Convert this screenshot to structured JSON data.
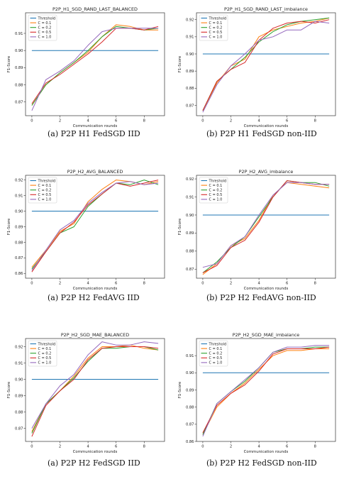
{
  "colors": {
    "Threshold": "#1f77b4",
    "C = 0.1": "#ff7f0e",
    "C = 0.2": "#2ca02c",
    "C = 0.5": "#d62728",
    "C = 1.0": "#9467bd"
  },
  "chart_data": [
    {
      "type": "line",
      "title": "P2P_H1_SGD_RAND_LAST_BALANCED",
      "xlabel": "Communication rounds",
      "ylabel": "F1-Score",
      "xlim": [
        -0.45,
        9.45
      ],
      "ylim": [
        0.862,
        0.922
      ],
      "xticks": [
        0,
        2,
        4,
        6,
        8
      ],
      "yticks": [
        0.87,
        0.88,
        0.89,
        0.9,
        0.91
      ],
      "ytick_labels": [
        "0.87",
        "0.88",
        "0.89",
        "0.90",
        "0.91"
      ],
      "legend_position": "top-left",
      "grid": false,
      "x": [
        0,
        1,
        2,
        3,
        4,
        5,
        6,
        7,
        8,
        9
      ],
      "series": [
        {
          "name": "Threshold",
          "values": [
            0.9,
            0.9,
            0.9,
            0.9,
            0.9,
            0.9,
            0.9,
            0.9,
            0.9,
            0.9
          ]
        },
        {
          "name": "C = 0.1",
          "values": [
            0.868,
            0.88,
            0.887,
            0.893,
            0.899,
            0.908,
            0.915,
            0.914,
            0.912,
            0.912
          ]
        },
        {
          "name": "C = 0.2",
          "values": [
            0.868,
            0.88,
            0.887,
            0.893,
            0.9,
            0.908,
            0.914,
            0.913,
            0.912,
            0.913
          ]
        },
        {
          "name": "C = 0.5",
          "values": [
            0.869,
            0.881,
            0.886,
            0.892,
            0.898,
            0.905,
            0.913,
            0.913,
            0.912,
            0.914
          ]
        },
        {
          "name": "C = 1.0",
          "values": [
            0.865,
            0.883,
            0.888,
            0.894,
            0.903,
            0.911,
            0.913,
            0.913,
            0.913,
            0.913
          ]
        }
      ]
    },
    {
      "type": "line",
      "title": "P2P_H1_SGD_RAND_LAST_imbalance",
      "xlabel": "Communication rounds",
      "ylabel": "F1-Score",
      "xlim": [
        -0.45,
        9.45
      ],
      "ylim": [
        0.864,
        0.924
      ],
      "xticks": [
        0,
        2,
        4,
        6,
        8
      ],
      "yticks": [
        0.87,
        0.88,
        0.89,
        0.9,
        0.91,
        0.92
      ],
      "ytick_labels": [
        "0.87",
        "0.88",
        "0.89",
        "0.90",
        "0.91",
        "0.92"
      ],
      "legend_position": "top-left",
      "grid": false,
      "x": [
        0,
        1,
        2,
        3,
        4,
        5,
        6,
        7,
        8,
        9
      ],
      "series": [
        {
          "name": "Threshold",
          "values": [
            0.9,
            0.9,
            0.9,
            0.9,
            0.9,
            0.9,
            0.9,
            0.9,
            0.9,
            0.9
          ]
        },
        {
          "name": "C = 0.1",
          "values": [
            0.867,
            0.883,
            0.893,
            0.897,
            0.91,
            0.914,
            0.916,
            0.918,
            0.919,
            0.921
          ]
        },
        {
          "name": "C = 0.2",
          "values": [
            0.867,
            0.884,
            0.891,
            0.898,
            0.907,
            0.913,
            0.917,
            0.919,
            0.92,
            0.921
          ]
        },
        {
          "name": "C = 0.5",
          "values": [
            0.867,
            0.884,
            0.891,
            0.895,
            0.908,
            0.915,
            0.918,
            0.919,
            0.918,
            0.92
          ]
        },
        {
          "name": "C = 1.0",
          "values": [
            0.866,
            0.882,
            0.893,
            0.9,
            0.908,
            0.91,
            0.914,
            0.914,
            0.919,
            0.918
          ]
        }
      ]
    },
    {
      "type": "line",
      "title": "P2P_H2_AVG_BALANCED",
      "xlabel": "Communication rounds",
      "ylabel": "F1-Score",
      "xlim": [
        -0.45,
        9.45
      ],
      "ylim": [
        0.857,
        0.923
      ],
      "xticks": [
        0,
        2,
        4,
        6,
        8
      ],
      "yticks": [
        0.86,
        0.87,
        0.88,
        0.89,
        0.9,
        0.91,
        0.92
      ],
      "ytick_labels": [
        "0.86",
        "0.87",
        "0.88",
        "0.89",
        "0.90",
        "0.91",
        "0.92"
      ],
      "legend_position": "top-left",
      "grid": false,
      "x": [
        0,
        1,
        2,
        3,
        4,
        5,
        6,
        7,
        8,
        9
      ],
      "series": [
        {
          "name": "Threshold",
          "values": [
            0.9,
            0.9,
            0.9,
            0.9,
            0.9,
            0.9,
            0.9,
            0.9,
            0.9,
            0.9
          ]
        },
        {
          "name": "C = 0.1",
          "values": [
            0.864,
            0.875,
            0.887,
            0.892,
            0.906,
            0.914,
            0.92,
            0.919,
            0.917,
            0.919
          ]
        },
        {
          "name": "C = 0.2",
          "values": [
            0.863,
            0.874,
            0.886,
            0.89,
            0.903,
            0.911,
            0.918,
            0.917,
            0.92,
            0.917
          ]
        },
        {
          "name": "C = 0.5",
          "values": [
            0.861,
            0.874,
            0.886,
            0.893,
            0.904,
            0.911,
            0.918,
            0.916,
            0.918,
            0.92
          ]
        },
        {
          "name": "C = 1.0",
          "values": [
            0.862,
            0.875,
            0.888,
            0.894,
            0.905,
            0.912,
            0.918,
            0.919,
            0.917,
            0.918
          ]
        }
      ]
    },
    {
      "type": "line",
      "title": "P2P_H2_AVG_imbalance",
      "xlabel": "Communication rounds",
      "ylabel": "F1-Score",
      "xlim": [
        -0.45,
        9.45
      ],
      "ylim": [
        0.865,
        0.922
      ],
      "xticks": [
        0,
        2,
        4,
        6,
        8
      ],
      "yticks": [
        0.87,
        0.88,
        0.89,
        0.9,
        0.91,
        0.92
      ],
      "ytick_labels": [
        "0.87",
        "0.88",
        "0.89",
        "0.90",
        "0.91",
        "0.92"
      ],
      "legend_position": "top-left",
      "grid": false,
      "x": [
        0,
        1,
        2,
        3,
        4,
        5,
        6,
        7,
        8,
        9
      ],
      "series": [
        {
          "name": "Threshold",
          "values": [
            0.9,
            0.9,
            0.9,
            0.9,
            0.9,
            0.9,
            0.9,
            0.9,
            0.9,
            0.9
          ]
        },
        {
          "name": "C = 0.1",
          "values": [
            0.867,
            0.873,
            0.883,
            0.887,
            0.897,
            0.911,
            0.918,
            0.917,
            0.916,
            0.915
          ]
        },
        {
          "name": "C = 0.2",
          "values": [
            0.868,
            0.874,
            0.882,
            0.888,
            0.899,
            0.91,
            0.919,
            0.918,
            0.918,
            0.916
          ]
        },
        {
          "name": "C = 0.5",
          "values": [
            0.868,
            0.872,
            0.882,
            0.886,
            0.896,
            0.91,
            0.919,
            0.918,
            0.917,
            0.917
          ]
        },
        {
          "name": "C = 1.0",
          "values": [
            0.871,
            0.873,
            0.883,
            0.888,
            0.9,
            0.911,
            0.918,
            0.918,
            0.917,
            0.917
          ]
        }
      ]
    },
    {
      "type": "line",
      "title": "P2P_H2_SGD_MAE_BALANCED",
      "xlabel": "Communication rounds",
      "ylabel": "F1-Score",
      "xlim": [
        -0.45,
        9.45
      ],
      "ylim": [
        0.862,
        0.925
      ],
      "xticks": [
        0,
        2,
        4,
        6,
        8
      ],
      "yticks": [
        0.87,
        0.88,
        0.89,
        0.9,
        0.91,
        0.92
      ],
      "ytick_labels": [
        "0.87",
        "0.88",
        "0.89",
        "0.90",
        "0.91",
        "0.92"
      ],
      "legend_position": "top-left",
      "grid": false,
      "x": [
        0,
        1,
        2,
        3,
        4,
        5,
        6,
        7,
        8,
        9
      ],
      "series": [
        {
          "name": "Threshold",
          "values": [
            0.9,
            0.9,
            0.9,
            0.9,
            0.9,
            0.9,
            0.9,
            0.9,
            0.9,
            0.9
          ]
        },
        {
          "name": "C = 0.1",
          "values": [
            0.868,
            0.885,
            0.893,
            0.902,
            0.913,
            0.92,
            0.92,
            0.921,
            0.919,
            0.918
          ]
        },
        {
          "name": "C = 0.2",
          "values": [
            0.867,
            0.885,
            0.893,
            0.901,
            0.911,
            0.919,
            0.919,
            0.92,
            0.92,
            0.918
          ]
        },
        {
          "name": "C = 0.5",
          "values": [
            0.865,
            0.884,
            0.893,
            0.9,
            0.912,
            0.919,
            0.92,
            0.92,
            0.92,
            0.919
          ]
        },
        {
          "name": "C = 1.0",
          "values": [
            0.87,
            0.885,
            0.896,
            0.903,
            0.915,
            0.923,
            0.921,
            0.921,
            0.923,
            0.922
          ]
        }
      ]
    },
    {
      "type": "line",
      "title": "P2P_H2_SGD_MAE_imbalance",
      "xlabel": "Communication rounds",
      "ylabel": "F1-Score",
      "xlim": [
        -0.45,
        9.45
      ],
      "ylim": [
        0.86,
        0.92
      ],
      "xticks": [
        0,
        2,
        4,
        6,
        8
      ],
      "yticks": [
        0.86,
        0.87,
        0.88,
        0.89,
        0.9,
        0.91
      ],
      "ytick_labels": [
        "0.86",
        "0.87",
        "0.88",
        "0.89",
        "0.90",
        "0.91"
      ],
      "legend_position": "top-left",
      "grid": false,
      "x": [
        0,
        1,
        2,
        3,
        4,
        5,
        6,
        7,
        8,
        9
      ],
      "series": [
        {
          "name": "Threshold",
          "values": [
            0.9,
            0.9,
            0.9,
            0.9,
            0.9,
            0.9,
            0.9,
            0.9,
            0.9,
            0.9
          ]
        },
        {
          "name": "C = 0.1",
          "values": [
            0.864,
            0.88,
            0.888,
            0.894,
            0.902,
            0.91,
            0.913,
            0.913,
            0.914,
            0.914
          ]
        },
        {
          "name": "C = 0.2",
          "values": [
            0.864,
            0.882,
            0.889,
            0.895,
            0.903,
            0.912,
            0.914,
            0.914,
            0.915,
            0.915
          ]
        },
        {
          "name": "C = 0.5",
          "values": [
            0.865,
            0.881,
            0.888,
            0.893,
            0.901,
            0.911,
            0.914,
            0.914,
            0.914,
            0.915
          ]
        },
        {
          "name": "C = 1.0",
          "values": [
            0.863,
            0.882,
            0.889,
            0.896,
            0.903,
            0.912,
            0.915,
            0.915,
            0.916,
            0.916
          ]
        }
      ]
    }
  ],
  "captions": [
    "(a) P2P H1 FedSGD IID",
    "(b) P2P H1 FedSGD non-IID",
    "(a) P2P H2 FedAVG IID",
    "(b) P2P H2 FedAVG non-IID",
    "(a) P2P H2 FedSGD IID",
    "(b) P2P H2 FedSGD non-IID"
  ]
}
